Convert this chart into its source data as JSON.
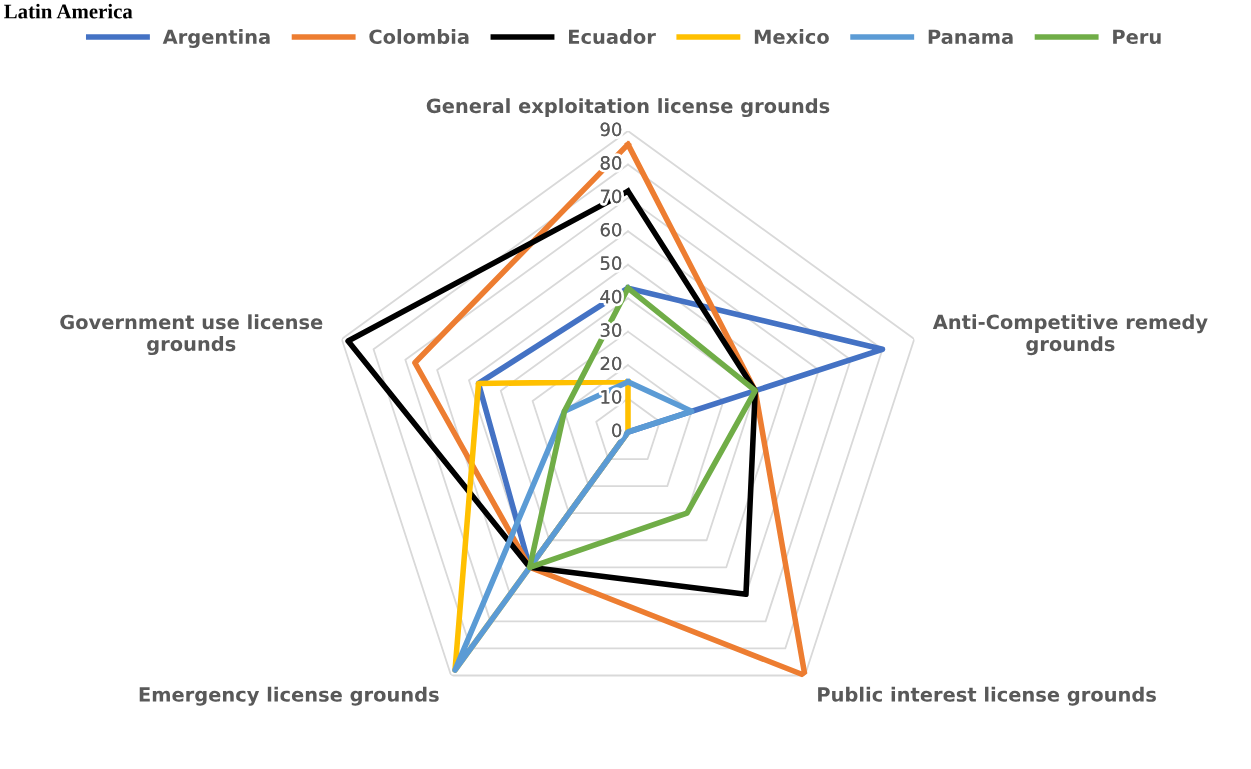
{
  "chart_data": {
    "type": "radar",
    "title": "Latin America",
    "categories": [
      "General exploitation license grounds",
      "Anti-Competitive remedy grounds",
      "Public interest license grounds",
      "Emergency license grounds",
      "Government use license grounds"
    ],
    "series": [
      {
        "name": "Argentina",
        "color": "#4472c4",
        "values": [
          43,
          80,
          0,
          50,
          47
        ]
      },
      {
        "name": "Colombia",
        "color": "#ed7d31",
        "values": [
          86,
          40,
          90,
          50,
          67
        ]
      },
      {
        "name": "Ecuador",
        "color": "#000000",
        "values": [
          72,
          40,
          60,
          50,
          88
        ]
      },
      {
        "name": "Mexico",
        "color": "#ffc000",
        "values": [
          15,
          0,
          0,
          88,
          47
        ]
      },
      {
        "name": "Panama",
        "color": "#5b9bd5",
        "values": [
          15,
          20,
          0,
          88,
          20
        ]
      },
      {
        "name": "Peru",
        "color": "#70ad47",
        "values": [
          43,
          40,
          30,
          50,
          20
        ]
      }
    ],
    "ylim": [
      0,
      90
    ],
    "yticks": [
      0,
      10,
      20,
      30,
      40,
      50,
      60,
      70,
      80,
      90
    ],
    "grid": true,
    "legend": "top",
    "marker": "none",
    "line_style": "solid"
  }
}
